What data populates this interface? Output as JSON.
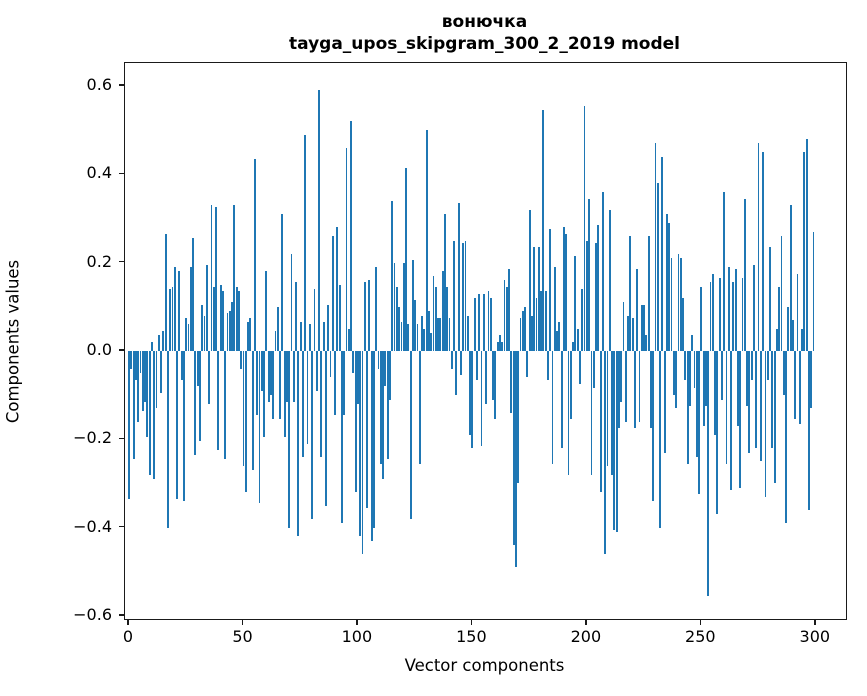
{
  "title": {
    "word": "вонючка",
    "model_line": "tayga_upos_skipgram_300_2_2019 model"
  },
  "chart_data": {
    "type": "bar",
    "title": "вонючка\ntayga_upos_skipgram_300_2_2019 model",
    "xlabel": "Vector components",
    "ylabel": "Components values",
    "bar_color": "#1f77b4",
    "axis_color": "#1a1a1a",
    "xlim": [
      -1.75,
      313.2
    ],
    "ylim": [
      -0.607,
      0.652
    ],
    "grid": false,
    "legend": "none",
    "x_ticks": [
      0,
      50,
      100,
      150,
      200,
      250,
      300
    ],
    "y_ticks": [
      0.6,
      0.4,
      0.2,
      0.0,
      -0.2,
      -0.4,
      -0.6
    ],
    "y_tick_labels": [
      "0.6",
      "0.4",
      "0.2",
      "0.0",
      "−0.2",
      "−0.4",
      "−0.6"
    ],
    "x_tick_labels": [
      "0",
      "50",
      "100",
      "150",
      "200",
      "250",
      "300"
    ],
    "n_components": 300,
    "values": [
      -0.335,
      -0.04,
      -0.245,
      -0.065,
      -0.16,
      -0.05,
      -0.135,
      -0.115,
      -0.195,
      -0.28,
      0.02,
      -0.29,
      -0.13,
      0.035,
      -0.095,
      0.045,
      0.265,
      -0.4,
      0.14,
      0.145,
      0.19,
      -0.335,
      0.18,
      -0.065,
      -0.34,
      0.075,
      0.06,
      0.19,
      0.255,
      -0.235,
      -0.08,
      -0.205,
      0.105,
      0.08,
      0.195,
      -0.12,
      0.33,
      0.145,
      0.325,
      -0.225,
      0.15,
      0.135,
      -0.245,
      0.085,
      0.09,
      0.11,
      0.33,
      0.145,
      0.135,
      -0.04,
      -0.26,
      -0.32,
      0.065,
      0.075,
      -0.27,
      0.435,
      -0.145,
      -0.345,
      -0.09,
      -0.195,
      0.18,
      -0.115,
      -0.1,
      -0.155,
      0.045,
      0.1,
      -0.155,
      0.31,
      -0.195,
      -0.115,
      -0.4,
      0.22,
      -0.115,
      0.155,
      -0.42,
      0.065,
      -0.24,
      0.49,
      -0.21,
      0.06,
      -0.38,
      0.14,
      -0.09,
      0.59,
      -0.24,
      0.065,
      -0.35,
      0.105,
      -0.06,
      0.26,
      -0.145,
      0.28,
      0.15,
      -0.39,
      -0.145,
      0.46,
      0.05,
      0.52,
      -0.05,
      -0.32,
      -0.12,
      -0.42,
      -0.46,
      0.155,
      -0.355,
      0.16,
      -0.43,
      -0.4,
      0.19,
      -0.04,
      -0.255,
      -0.29,
      -0.08,
      -0.245,
      -0.11,
      0.34,
      0.2,
      0.145,
      0.1,
      0.065,
      0.2,
      0.415,
      0.06,
      -0.38,
      0.205,
      0.115,
      0.06,
      -0.255,
      0.08,
      0.05,
      0.5,
      0.09,
      0.04,
      0.17,
      0.145,
      0.075,
      0.075,
      0.18,
      0.31,
      0.145,
      0.075,
      -0.04,
      0.25,
      -0.1,
      0.335,
      -0.055,
      0.245,
      0.25,
      0.08,
      -0.19,
      -0.22,
      0.12,
      -0.065,
      0.13,
      -0.215,
      0.13,
      -0.12,
      0.135,
      0.12,
      -0.11,
      -0.155,
      0.02,
      0.035,
      0.02,
      0.16,
      0.145,
      0.185,
      -0.14,
      -0.44,
      -0.49,
      -0.3,
      0.075,
      0.09,
      0.1,
      -0.06,
      0.32,
      0.08,
      0.235,
      0.12,
      0.235,
      0.135,
      0.545,
      0.135,
      -0.065,
      0.275,
      -0.255,
      0.19,
      0.045,
      0.065,
      -0.22,
      0.28,
      0.265,
      -0.28,
      -0.155,
      0.02,
      0.215,
      0.05,
      -0.075,
      0.14,
      0.555,
      0.25,
      0.345,
      -0.28,
      -0.085,
      0.245,
      0.285,
      -0.32,
      0.36,
      -0.46,
      -0.26,
      0.32,
      -0.28,
      -0.405,
      -0.41,
      -0.175,
      -0.115,
      0.11,
      -0.16,
      0.08,
      0.26,
      0.075,
      -0.175,
      0.185,
      -0.16,
      0.105,
      0.105,
      0.035,
      0.26,
      -0.175,
      -0.34,
      0.47,
      0.38,
      -0.4,
      0.44,
      -0.23,
      0.31,
      0.29,
      0.21,
      -0.1,
      -0.13,
      0.22,
      0.21,
      0.12,
      -0.065,
      -0.255,
      -0.125,
      0.035,
      -0.085,
      -0.24,
      -0.325,
      0.145,
      -0.17,
      -0.125,
      -0.555,
      0.155,
      0.175,
      -0.19,
      -0.37,
      0.165,
      -0.11,
      0.36,
      -0.255,
      0.19,
      -0.315,
      0.155,
      0.185,
      -0.17,
      -0.31,
      0.165,
      0.345,
      -0.125,
      -0.23,
      -0.065,
      0.195,
      -0.22,
      0.47,
      -0.25,
      0.45,
      -0.33,
      -0.065,
      0.235,
      -0.22,
      -0.3,
      0.05,
      0.145,
      0.26,
      -0.1,
      -0.39,
      0.1,
      0.33,
      0.07,
      -0.155,
      0.175,
      -0.165,
      0.05,
      0.45,
      0.48,
      -0.36,
      -0.13,
      0.27
    ]
  }
}
